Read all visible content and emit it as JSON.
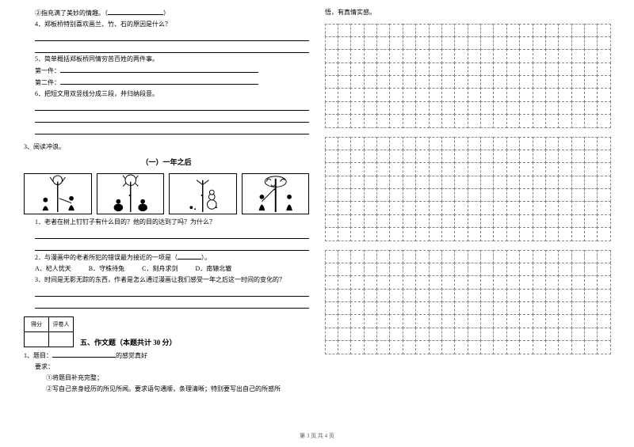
{
  "leftCol": {
    "l1": "②指充满了美妙的情趣。（",
    "l1b": "）",
    "q4": "4．郑板桥特别喜欢画兰、竹、石的原因是什么？",
    "q5": "5．简单概括郑板桥同情穷苦百姓的两件事。",
    "q5a": "第一件：",
    "q5b": "第二件：",
    "q6": "6．把短文用双竖线分成三段，并归纳段意。",
    "section3": "3、阅读冲浪。",
    "comicTitle": "（一）一年之后",
    "cq1": "1．老者在树上钉钉子有什么目的？他的目的达到了吗？为什么？",
    "cq2": "2．与漫画中的老者所犯的错误最为接近的一项是（",
    "cq2b": "）。",
    "optA": "A．杞人忧天",
    "optB": "B．守株待兔",
    "optC": "C．刻舟求剑",
    "optD": "D．南辕北辙",
    "cq3": "3．时间是无影无踪的东西，作者是怎么通过漫画让我们感受一年之后这一时间的变化的？",
    "scoreH1": "得分",
    "scoreH2": "评卷人",
    "part5Title": "五、作文题（本题共计 30 分）",
    "w1": "1、题目：",
    "w1b": "的感觉真好",
    "wreq": "要求：",
    "wreq1": "①将题目补充完整；",
    "wreq2": "②写自己亲身经历的所见所闻。要求语句通顺，条理清晰；特别要写出自己的所感所"
  },
  "rightCol": {
    "top": "悟，有真情实感。",
    "gridRows": [
      8,
      8,
      8
    ],
    "gridCols": 22
  },
  "footer": "第 3 页  共 4 页"
}
